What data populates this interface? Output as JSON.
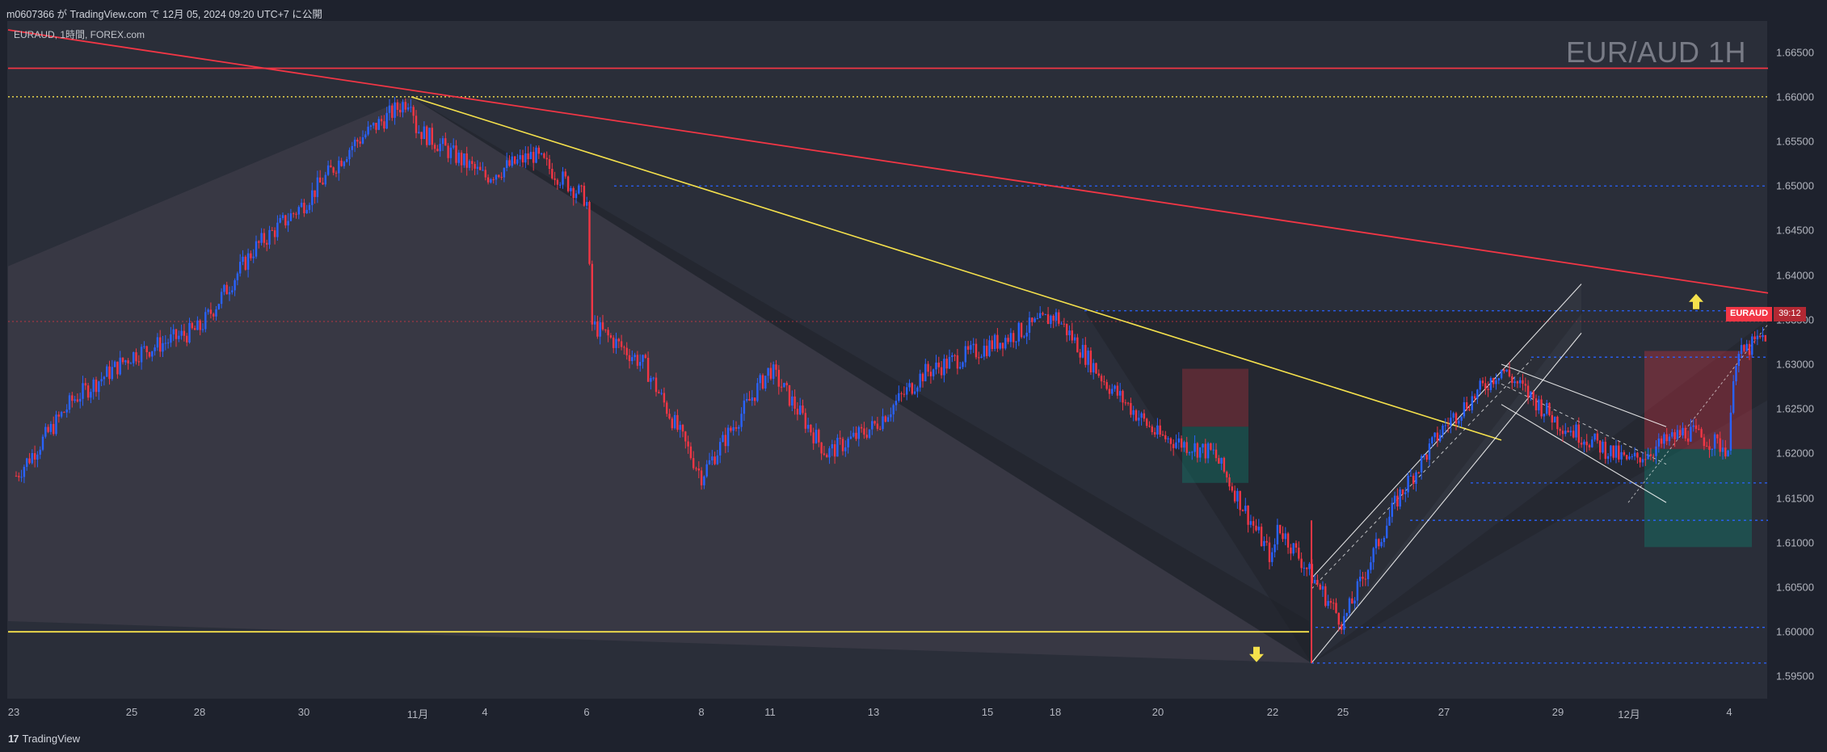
{
  "header": {
    "published_line": "m0607366 が TradingView.com で 12月 05, 2024 09:20 UTC+7 に公開"
  },
  "symbol_info": "EURAUD, 1時間, FOREX.com",
  "watermark": "EUR/AUD 1H",
  "price_badge": {
    "symbol": "EURAUD",
    "countdown": "39:12",
    "color": "#f23645"
  },
  "footer": {
    "logo_text": "TradingView",
    "logo_icon": "tradingview-logo-icon"
  },
  "colors": {
    "background": "#2a2e39",
    "up_candle": "#2962ff",
    "down_candle": "#f23645",
    "resistance": "#f23645",
    "trendline": "#f5e14c",
    "level": "#2962ff",
    "channel": "#ffffff"
  },
  "chart_data": {
    "type": "candlestick",
    "symbol": "EURAUD",
    "timeframe": "1H",
    "source": "FOREX.com",
    "ylim": [
      1.5925,
      1.6685
    ],
    "x_ticks": [
      "23",
      "25",
      "28",
      "30",
      "11月",
      "4",
      "6",
      "8",
      "11",
      "13",
      "15",
      "18",
      "20",
      "22",
      "25",
      "27",
      "29",
      "12月",
      "4"
    ],
    "y_ticks": [
      "1.66500",
      "1.66000",
      "1.65500",
      "1.65000",
      "1.64500",
      "1.64000",
      "1.63500",
      "1.63000",
      "1.62500",
      "1.62000",
      "1.61500",
      "1.61000",
      "1.60500",
      "1.60000",
      "1.59500"
    ],
    "price_path": [
      {
        "date": "10-23",
        "price": 1.6175
      },
      {
        "date": "10-24",
        "price": 1.626
      },
      {
        "date": "10-25",
        "price": 1.631
      },
      {
        "date": "10-28",
        "price": 1.634
      },
      {
        "date": "10-29",
        "price": 1.643
      },
      {
        "date": "10-30",
        "price": 1.648
      },
      {
        "date": "10-31",
        "price": 1.6545
      },
      {
        "date": "11-01",
        "price": 1.66
      },
      {
        "date": "11-01",
        "price": 1.6565
      },
      {
        "date": "11-04",
        "price": 1.651
      },
      {
        "date": "11-05",
        "price": 1.6535
      },
      {
        "date": "11-06",
        "price": 1.6485
      },
      {
        "date": "11-06",
        "price": 1.6345
      },
      {
        "date": "11-07",
        "price": 1.63
      },
      {
        "date": "11-08",
        "price": 1.6175
      },
      {
        "date": "11-11",
        "price": 1.6295
      },
      {
        "date": "11-12",
        "price": 1.62
      },
      {
        "date": "11-13",
        "price": 1.623
      },
      {
        "date": "11-14",
        "price": 1.629
      },
      {
        "date": "11-15",
        "price": 1.632
      },
      {
        "date": "11-18",
        "price": 1.6355
      },
      {
        "date": "11-19",
        "price": 1.628
      },
      {
        "date": "11-20",
        "price": 1.622
      },
      {
        "date": "11-21",
        "price": 1.62
      },
      {
        "date": "11-22",
        "price": 1.608
      },
      {
        "date": "11-22",
        "price": 1.612
      },
      {
        "date": "11-25",
        "price": 1.601
      },
      {
        "date": "11-26",
        "price": 1.615
      },
      {
        "date": "11-27",
        "price": 1.623
      },
      {
        "date": "11-28",
        "price": 1.6295
      },
      {
        "date": "11-29",
        "price": 1.6235
      },
      {
        "date": "12-02",
        "price": 1.619
      },
      {
        "date": "12-03",
        "price": 1.6225
      },
      {
        "date": "12-04",
        "price": 1.6205
      },
      {
        "date": "12-04",
        "price": 1.6305
      },
      {
        "date": "12-05",
        "price": 1.6335
      }
    ],
    "horizontal_levels": [
      {
        "price": 1.6632,
        "style": "solid",
        "color": "#f23645"
      },
      {
        "price": 1.66,
        "style": "dotted",
        "color": "#f5e14c"
      },
      {
        "price": 1.65,
        "style": "dashed",
        "color": "#2962ff"
      },
      {
        "price": 1.636,
        "style": "dashed",
        "color": "#2962ff"
      },
      {
        "price": 1.6348,
        "style": "dotted",
        "color": "#f23645"
      },
      {
        "price": 1.6308,
        "style": "dashed",
        "color": "#2962ff"
      },
      {
        "price": 1.6167,
        "style": "dashed",
        "color": "#2962ff"
      },
      {
        "price": 1.6125,
        "style": "dashed",
        "color": "#2962ff"
      },
      {
        "price": 1.6005,
        "style": "dashed",
        "color": "#2962ff"
      },
      {
        "price": 1.6,
        "style": "solid",
        "color": "#f5e14c"
      },
      {
        "price": 1.5965,
        "style": "dashed",
        "color": "#2962ff"
      }
    ],
    "annotations": [
      {
        "type": "arrow-up",
        "color": "#f5e14c"
      },
      {
        "type": "arrow-down",
        "color": "#f5e14c"
      }
    ],
    "legend": "none",
    "grid": false
  }
}
